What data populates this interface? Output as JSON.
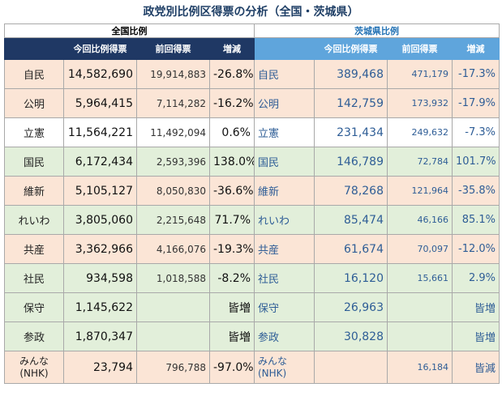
{
  "title": "政党別比例区得票の分析（全国・茨城県）",
  "headers": {
    "national": "全国比例",
    "ibaraki": "茨城県比例",
    "current": "今回比例得票",
    "previous": "前回得票",
    "change": "増減"
  },
  "rows": [
    {
      "party": "自民",
      "n_cur": "14,582,690",
      "n_prev": "19,914,883",
      "n_chg": "-26.8%",
      "i_cur": "389,468",
      "i_prev": "471,179",
      "i_chg": "-17.3%",
      "color": "pink"
    },
    {
      "party": "公明",
      "n_cur": "5,964,415",
      "n_prev": "7,114,282",
      "n_chg": "-16.2%",
      "i_cur": "142,759",
      "i_prev": "173,932",
      "i_chg": "-17.9%",
      "color": "pink"
    },
    {
      "party": "立憲",
      "n_cur": "11,564,221",
      "n_prev": "11,492,094",
      "n_chg": "0.6%",
      "i_cur": "231,434",
      "i_prev": "249,632",
      "i_chg": "-7.3%",
      "color": "white"
    },
    {
      "party": "国民",
      "n_cur": "6,172,434",
      "n_prev": "2,593,396",
      "n_chg": "138.0%",
      "i_cur": "146,789",
      "i_prev": "72,784",
      "i_chg": "101.7%",
      "color": "green"
    },
    {
      "party": "維新",
      "n_cur": "5,105,127",
      "n_prev": "8,050,830",
      "n_chg": "-36.6%",
      "i_cur": "78,268",
      "i_prev": "121,964",
      "i_chg": "-35.8%",
      "color": "pink"
    },
    {
      "party": "れいわ",
      "n_cur": "3,805,060",
      "n_prev": "2,215,648",
      "n_chg": "71.7%",
      "i_cur": "85,474",
      "i_prev": "46,166",
      "i_chg": "85.1%",
      "color": "green"
    },
    {
      "party": "共産",
      "n_cur": "3,362,966",
      "n_prev": "4,166,076",
      "n_chg": "-19.3%",
      "i_cur": "61,674",
      "i_prev": "70,097",
      "i_chg": "-12.0%",
      "color": "pink"
    },
    {
      "party": "社民",
      "n_cur": "934,598",
      "n_prev": "1,018,588",
      "n_chg": "-8.2%",
      "i_cur": "16,120",
      "i_prev": "15,661",
      "i_chg": "2.9%",
      "color": "green"
    },
    {
      "party": "保守",
      "n_cur": "1,145,622",
      "n_prev": "",
      "n_chg": "皆増",
      "i_cur": "26,963",
      "i_prev": "",
      "i_chg": "皆増",
      "color": "green"
    },
    {
      "party": "参政",
      "n_cur": "1,870,347",
      "n_prev": "",
      "n_chg": "皆増",
      "i_cur": "30,828",
      "i_prev": "",
      "i_chg": "皆増",
      "color": "green"
    },
    {
      "party": "みんな(NHK)",
      "n_cur": "23,794",
      "n_prev": "796,788",
      "n_chg": "-97.0%",
      "i_cur": "",
      "i_prev": "16,184",
      "i_chg": "皆減",
      "color": "pink"
    }
  ]
}
